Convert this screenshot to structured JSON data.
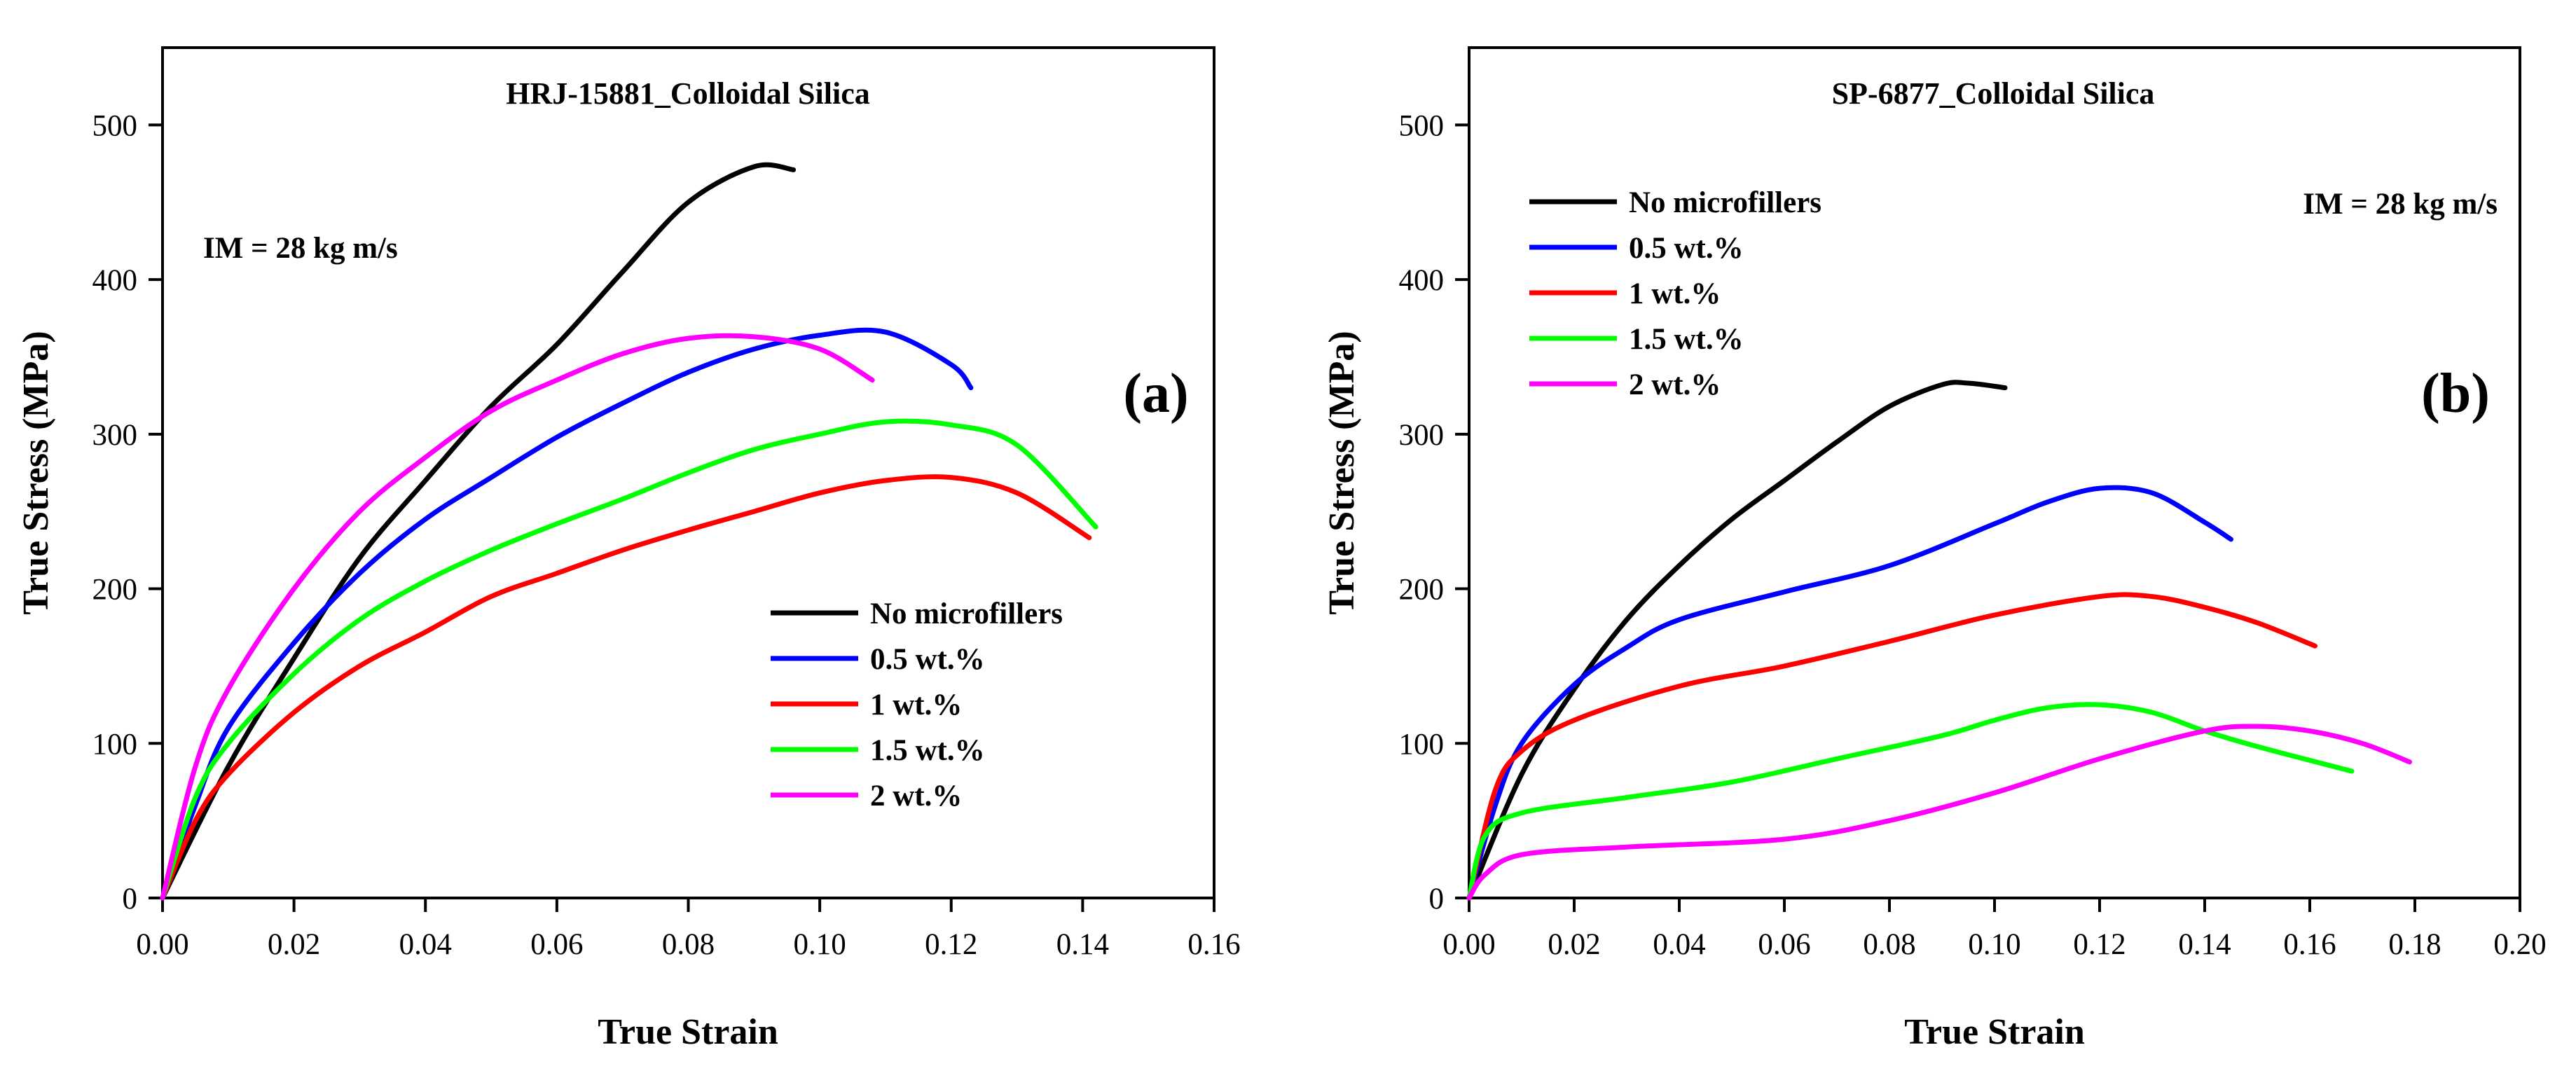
{
  "chart_data": [
    {
      "type": "line",
      "title": "HRJ-15881_Colloidal Silica",
      "xlabel": "True Strain",
      "ylabel": "True Stress (MPa)",
      "xlim": [
        0,
        0.16
      ],
      "ylim": [
        0,
        550
      ],
      "xticks": [
        0,
        0.02,
        0.04,
        0.06,
        0.08,
        0.1,
        0.12,
        0.14,
        0.16
      ],
      "xtick_labels": [
        "0.00",
        "0.02",
        "0.04",
        "0.06",
        "0.08",
        "0.10",
        "0.12",
        "0.14",
        "0.16"
      ],
      "yticks": [
        0,
        100,
        200,
        300,
        400,
        500
      ],
      "ytick_labels": [
        "0",
        "100",
        "200",
        "300",
        "400",
        "500"
      ],
      "annotation": "IM = 28 kg m/s",
      "panel_label": "(a)",
      "legend_position": "lower-right",
      "series": [
        {
          "name": "No microfillers",
          "color": "#000000",
          "points": [
            [
              0,
              0
            ],
            [
              0.01,
              85
            ],
            [
              0.02,
              155
            ],
            [
              0.03,
              220
            ],
            [
              0.04,
              270
            ],
            [
              0.05,
              318
            ],
            [
              0.06,
              358
            ],
            [
              0.07,
              405
            ],
            [
              0.08,
              450
            ],
            [
              0.09,
              473
            ],
            [
              0.096,
              471
            ]
          ]
        },
        {
          "name": "0.5 wt.%",
          "color": "#0000ff",
          "points": [
            [
              0,
              0
            ],
            [
              0.005,
              60
            ],
            [
              0.01,
              110
            ],
            [
              0.02,
              165
            ],
            [
              0.03,
              210
            ],
            [
              0.04,
              245
            ],
            [
              0.05,
              272
            ],
            [
              0.06,
              298
            ],
            [
              0.07,
              320
            ],
            [
              0.08,
              340
            ],
            [
              0.09,
              355
            ],
            [
              0.1,
              364
            ],
            [
              0.11,
              366
            ],
            [
              0.12,
              345
            ],
            [
              0.123,
              330
            ]
          ]
        },
        {
          "name": "1 wt.%",
          "color": "#ff0000",
          "points": [
            [
              0,
              0
            ],
            [
              0.005,
              50
            ],
            [
              0.01,
              80
            ],
            [
              0.02,
              120
            ],
            [
              0.03,
              150
            ],
            [
              0.04,
              172
            ],
            [
              0.05,
              195
            ],
            [
              0.06,
              210
            ],
            [
              0.07,
              225
            ],
            [
              0.08,
              238
            ],
            [
              0.09,
              250
            ],
            [
              0.1,
              262
            ],
            [
              0.11,
              270
            ],
            [
              0.12,
              272
            ],
            [
              0.13,
              262
            ],
            [
              0.141,
              233
            ]
          ]
        },
        {
          "name": "1.5 wt.%",
          "color": "#00ff00",
          "points": [
            [
              0,
              0
            ],
            [
              0.005,
              65
            ],
            [
              0.01,
              100
            ],
            [
              0.02,
              145
            ],
            [
              0.03,
              180
            ],
            [
              0.04,
              205
            ],
            [
              0.05,
              225
            ],
            [
              0.06,
              242
            ],
            [
              0.07,
              258
            ],
            [
              0.08,
              275
            ],
            [
              0.09,
              290
            ],
            [
              0.1,
              300
            ],
            [
              0.11,
              308
            ],
            [
              0.12,
              306
            ],
            [
              0.13,
              293
            ],
            [
              0.142,
              240
            ]
          ]
        },
        {
          "name": "2 wt.%",
          "color": "#ff00ff",
          "points": [
            [
              0,
              0
            ],
            [
              0.005,
              85
            ],
            [
              0.01,
              135
            ],
            [
              0.02,
              200
            ],
            [
              0.03,
              250
            ],
            [
              0.04,
              285
            ],
            [
              0.05,
              315
            ],
            [
              0.06,
              335
            ],
            [
              0.07,
              352
            ],
            [
              0.08,
              362
            ],
            [
              0.09,
              363
            ],
            [
              0.1,
              355
            ],
            [
              0.108,
              335
            ]
          ]
        }
      ]
    },
    {
      "type": "line",
      "title": "SP-6877_Colloidal Silica",
      "xlabel": "True Strain",
      "ylabel": "True Stress (MPa)",
      "xlim": [
        0,
        0.2
      ],
      "ylim": [
        0,
        550
      ],
      "xticks": [
        0,
        0.02,
        0.04,
        0.06,
        0.08,
        0.1,
        0.12,
        0.14,
        0.16,
        0.18,
        0.2
      ],
      "xtick_labels": [
        "0.00",
        "0.02",
        "0.04",
        "0.06",
        "0.08",
        "0.10",
        "0.12",
        "0.14",
        "0.16",
        "0.18",
        "0.20"
      ],
      "yticks": [
        0,
        100,
        200,
        300,
        400,
        500
      ],
      "ytick_labels": [
        "0",
        "100",
        "200",
        "300",
        "400",
        "500"
      ],
      "annotation": "IM = 28 kg m/s",
      "panel_label": "(b)",
      "legend_position": "upper-left",
      "series": [
        {
          "name": "No microfillers",
          "color": "#000000",
          "points": [
            [
              0,
              0
            ],
            [
              0.01,
              80
            ],
            [
              0.02,
              135
            ],
            [
              0.03,
              180
            ],
            [
              0.04,
              215
            ],
            [
              0.05,
              245
            ],
            [
              0.06,
              270
            ],
            [
              0.07,
              295
            ],
            [
              0.08,
              318
            ],
            [
              0.09,
              332
            ],
            [
              0.095,
              333
            ],
            [
              0.102,
              330
            ]
          ]
        },
        {
          "name": "0.5 wt.%",
          "color": "#0000ff",
          "points": [
            [
              0,
              0
            ],
            [
              0.005,
              60
            ],
            [
              0.01,
              100
            ],
            [
              0.02,
              138
            ],
            [
              0.03,
              162
            ],
            [
              0.04,
              180
            ],
            [
              0.06,
              198
            ],
            [
              0.08,
              215
            ],
            [
              0.1,
              242
            ],
            [
              0.11,
              256
            ],
            [
              0.12,
              265
            ],
            [
              0.13,
              262
            ],
            [
              0.14,
              243
            ],
            [
              0.145,
              232
            ]
          ]
        },
        {
          "name": "1 wt.%",
          "color": "#ff0000",
          "points": [
            [
              0,
              0
            ],
            [
              0.005,
              70
            ],
            [
              0.01,
              95
            ],
            [
              0.02,
              115
            ],
            [
              0.04,
              137
            ],
            [
              0.06,
              150
            ],
            [
              0.08,
              166
            ],
            [
              0.1,
              183
            ],
            [
              0.12,
              195
            ],
            [
              0.13,
              195
            ],
            [
              0.14,
              188
            ],
            [
              0.15,
              178
            ],
            [
              0.161,
              163
            ]
          ]
        },
        {
          "name": "1.5 wt.%",
          "color": "#00ff00",
          "points": [
            [
              0,
              0
            ],
            [
              0.003,
              40
            ],
            [
              0.01,
              55
            ],
            [
              0.03,
              65
            ],
            [
              0.05,
              75
            ],
            [
              0.07,
              90
            ],
            [
              0.09,
              105
            ],
            [
              0.1,
              115
            ],
            [
              0.11,
              123
            ],
            [
              0.12,
              125
            ],
            [
              0.13,
              120
            ],
            [
              0.14,
              108
            ],
            [
              0.15,
              98
            ],
            [
              0.168,
              82
            ]
          ]
        },
        {
          "name": "2 wt.%",
          "color": "#ff00ff",
          "points": [
            [
              0,
              0
            ],
            [
              0.003,
              15
            ],
            [
              0.01,
              28
            ],
            [
              0.03,
              33
            ],
            [
              0.06,
              38
            ],
            [
              0.08,
              50
            ],
            [
              0.1,
              68
            ],
            [
              0.12,
              90
            ],
            [
              0.14,
              108
            ],
            [
              0.15,
              111
            ],
            [
              0.16,
              108
            ],
            [
              0.17,
              100
            ],
            [
              0.179,
              88
            ]
          ]
        }
      ]
    }
  ]
}
